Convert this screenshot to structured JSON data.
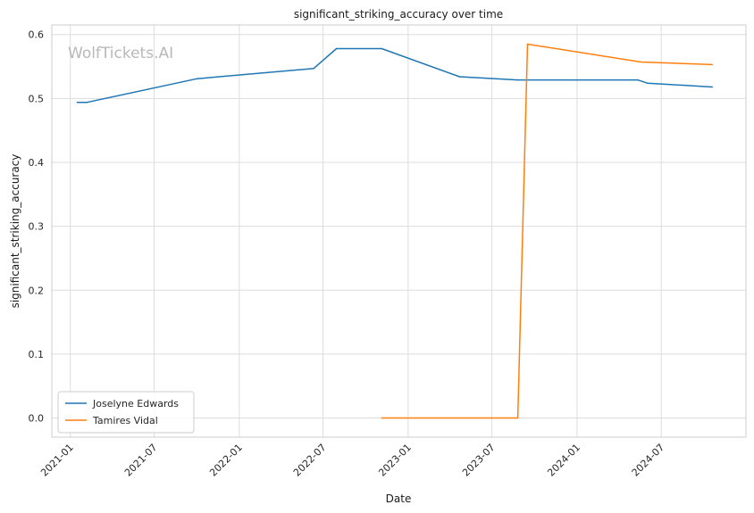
{
  "watermark": "WolfTickets.AI",
  "chart_data": {
    "type": "line",
    "title": "significant_striking_accuracy over time",
    "xlabel": "Date",
    "ylabel": "significant_striking_accuracy",
    "x_ticks": [
      "2021-01",
      "2021-07",
      "2022-01",
      "2022-07",
      "2023-01",
      "2023-07",
      "2024-01",
      "2024-07"
    ],
    "y_ticks": [
      "0.0",
      "0.1",
      "0.2",
      "0.3",
      "0.4",
      "0.5",
      "0.6"
    ],
    "ylim": [
      -0.03,
      0.615
    ],
    "xlim": [
      "2020-11-22",
      "2024-12-31"
    ],
    "grid": true,
    "legend_position": "lower-left",
    "series": [
      {
        "name": "Joselyne Edwards",
        "color": "#1f77b4",
        "points": [
          {
            "x": "2021-01-16",
            "y": 0.494
          },
          {
            "x": "2021-02-06",
            "y": 0.494
          },
          {
            "x": "2021-10-02",
            "y": 0.531
          },
          {
            "x": "2022-06-11",
            "y": 0.547
          },
          {
            "x": "2022-07-30",
            "y": 0.578
          },
          {
            "x": "2022-11-05",
            "y": 0.578
          },
          {
            "x": "2023-04-22",
            "y": 0.534
          },
          {
            "x": "2023-08-26",
            "y": 0.529
          },
          {
            "x": "2024-05-11",
            "y": 0.529
          },
          {
            "x": "2024-06-01",
            "y": 0.524
          },
          {
            "x": "2024-10-19",
            "y": 0.518
          }
        ]
      },
      {
        "name": "Tamires Vidal",
        "color": "#ff7f0e",
        "points": [
          {
            "x": "2022-11-05",
            "y": 0.0
          },
          {
            "x": "2023-08-26",
            "y": 0.0
          },
          {
            "x": "2023-09-16",
            "y": 0.585
          },
          {
            "x": "2024-05-18",
            "y": 0.557
          },
          {
            "x": "2024-10-19",
            "y": 0.553
          }
        ]
      }
    ]
  }
}
